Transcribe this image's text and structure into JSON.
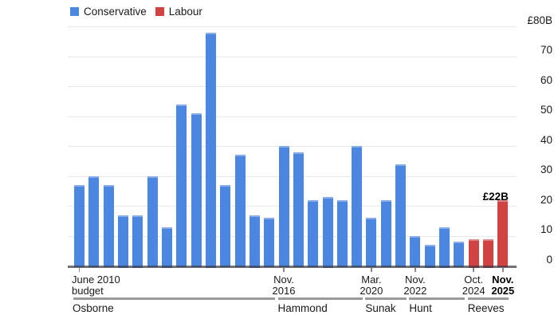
{
  "legend": {
    "items": [
      {
        "label": "Conservative",
        "color": "#4b86e1"
      },
      {
        "label": "Labour",
        "color": "#d14343"
      }
    ]
  },
  "y_axis": {
    "ticks": [
      {
        "value": 80,
        "label": "£80B"
      },
      {
        "value": 70,
        "label": "70"
      },
      {
        "value": 60,
        "label": "60"
      },
      {
        "value": 50,
        "label": "50"
      },
      {
        "value": 40,
        "label": "40"
      },
      {
        "value": 30,
        "label": "30"
      },
      {
        "value": 20,
        "label": "20"
      },
      {
        "value": 10,
        "label": "10"
      },
      {
        "value": 0,
        "label": "0"
      }
    ]
  },
  "chart_data": {
    "type": "bar",
    "unit": "£ billions",
    "ylim": [
      0,
      80
    ],
    "grid": true,
    "legend_position": "top-left",
    "colors": {
      "Conservative": "#4b86e1",
      "Labour": "#d14343"
    },
    "bars": [
      {
        "value": 27,
        "party": "Conservative"
      },
      {
        "value": 30,
        "party": "Conservative"
      },
      {
        "value": 27,
        "party": "Conservative"
      },
      {
        "value": 17,
        "party": "Conservative"
      },
      {
        "value": 17,
        "party": "Conservative"
      },
      {
        "value": 30,
        "party": "Conservative"
      },
      {
        "value": 13,
        "party": "Conservative"
      },
      {
        "value": 54,
        "party": "Conservative"
      },
      {
        "value": 51,
        "party": "Conservative"
      },
      {
        "value": 78,
        "party": "Conservative"
      },
      {
        "value": 27,
        "party": "Conservative"
      },
      {
        "value": 37,
        "party": "Conservative"
      },
      {
        "value": 17,
        "party": "Conservative"
      },
      {
        "value": 16,
        "party": "Conservative"
      },
      {
        "value": 40,
        "party": "Conservative"
      },
      {
        "value": 38,
        "party": "Conservative"
      },
      {
        "value": 22,
        "party": "Conservative"
      },
      {
        "value": 23,
        "party": "Conservative"
      },
      {
        "value": 22,
        "party": "Conservative"
      },
      {
        "value": 40,
        "party": "Conservative"
      },
      {
        "value": 16,
        "party": "Conservative"
      },
      {
        "value": 22,
        "party": "Conservative"
      },
      {
        "value": 34,
        "party": "Conservative"
      },
      {
        "value": 10,
        "party": "Conservative"
      },
      {
        "value": 7,
        "party": "Conservative"
      },
      {
        "value": 13,
        "party": "Conservative"
      },
      {
        "value": 8,
        "party": "Conservative"
      },
      {
        "value": 9,
        "party": "Labour"
      },
      {
        "value": 9,
        "party": "Labour"
      },
      {
        "value": 22,
        "party": "Labour"
      }
    ],
    "x_tick_labels": [
      {
        "line1": "June 2010",
        "line2": "budget",
        "bar": 0,
        "align": "left",
        "bold": false
      },
      {
        "line1": "Nov.",
        "line2": "2016",
        "bar": 14,
        "align": "center",
        "bold": false
      },
      {
        "line1": "Mar.",
        "line2": "2020",
        "bar": 20,
        "align": "center",
        "bold": false
      },
      {
        "line1": "Nov.",
        "line2": "2022",
        "bar": 23,
        "align": "center",
        "bold": false
      },
      {
        "line1": "Oct.",
        "line2": "2024",
        "bar": 27,
        "align": "center",
        "bold": false
      },
      {
        "line1": "Nov.",
        "line2": "2025",
        "bar": 29,
        "align": "center",
        "bold": true
      }
    ],
    "chancellor_groups": [
      {
        "name": "Osborne",
        "from": 0,
        "to": 13
      },
      {
        "name": "Hammond",
        "from": 14,
        "to": 19
      },
      {
        "name": "Sunak",
        "from": 20,
        "to": 22
      },
      {
        "name": "Hunt",
        "from": 23,
        "to": 26
      },
      {
        "name": "Reeves",
        "from": 27,
        "to": 29
      }
    ],
    "annotation": {
      "text": "£22B",
      "bar_index": 29
    }
  }
}
